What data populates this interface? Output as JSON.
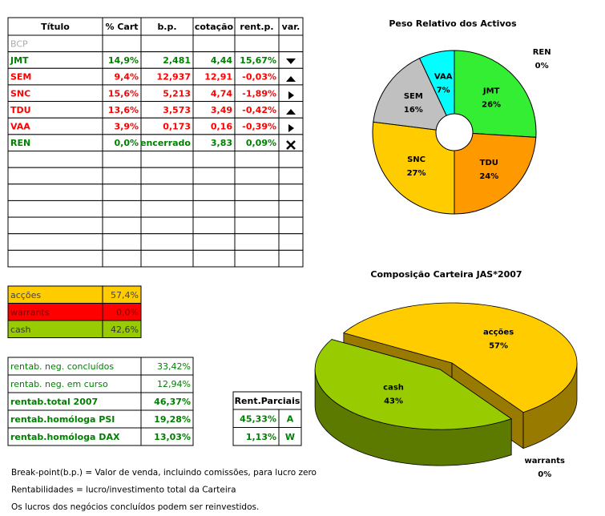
{
  "stock_table": {
    "header": [
      "Título",
      "% Cart",
      "b.p.",
      "cotação",
      "rent.p.",
      "var."
    ],
    "rows": [
      [
        "BCP"
      ],
      [
        "JMT",
        "14,9%",
        "2,481",
        "4,44",
        "15,67%"
      ],
      [
        "SEM",
        "9,4%",
        "12,937",
        "12,91",
        "-0,03%"
      ],
      [
        "SNC",
        "15,6%",
        "5,213",
        "4,74",
        "-1,89%"
      ],
      [
        "TDU",
        "13,6%",
        "3,573",
        "3,49",
        "-0,42%"
      ],
      [
        "VAA",
        "3,9%",
        "0,173",
        "0,16",
        "-0,39%"
      ],
      [
        "REN",
        "0,0%",
        "encerrado",
        "3,83",
        "0,09%"
      ]
    ]
  },
  "allocation": {
    "rows": [
      [
        "acções",
        "57,4%"
      ],
      [
        "warrants",
        "0,0%"
      ],
      [
        "cash",
        "42,6%"
      ]
    ]
  },
  "returns": {
    "rows": [
      [
        "rentab. neg. concluídos",
        "33,42%"
      ],
      [
        "rentab. neg. em curso",
        "12,94%"
      ],
      [
        "rentab.total 2007",
        "46,37%"
      ],
      [
        "rentab.homóloga PSI",
        "19,28%"
      ],
      [
        "rentab.homóloga DAX",
        "13,03%"
      ]
    ]
  },
  "partial_returns": {
    "header": "Rent.Parciais",
    "rows": [
      [
        "45,33%",
        "A"
      ],
      [
        "1,13%",
        "W"
      ]
    ]
  },
  "notes": [
    "Break-point(b.p.) = Valor de venda, incluindo comissões, para lucro zero",
    "Rentabilidades = lucro/investimento total da Carteira",
    "Os lucros dos negócios concluídos podem ser reinvestidos."
  ],
  "chart_data": [
    {
      "type": "doughnut",
      "title": "Peso Relativo dos Activos",
      "categories": [
        "JMT",
        "TDU",
        "SNC",
        "SEM",
        "VAA",
        "REN"
      ],
      "values": [
        26,
        24,
        27,
        16,
        7,
        0
      ],
      "value_labels": [
        "26%",
        "24%",
        "27%",
        "16%",
        "7%",
        "0%"
      ],
      "colors": [
        "#33ee33",
        "#ff9900",
        "#ffcc00",
        "#c0c0c0",
        "#00ffff",
        "#ffffff"
      ]
    },
    {
      "type": "pie3d",
      "title": "Composição Carteira JAS*2007",
      "categories": [
        "acções",
        "warrants",
        "cash"
      ],
      "values": [
        57,
        0,
        43
      ],
      "value_labels": [
        "57%",
        "0%",
        "43%"
      ],
      "colors": [
        "#ffcc00",
        "#990000",
        "#99cc00"
      ],
      "explode": "cash"
    }
  ]
}
